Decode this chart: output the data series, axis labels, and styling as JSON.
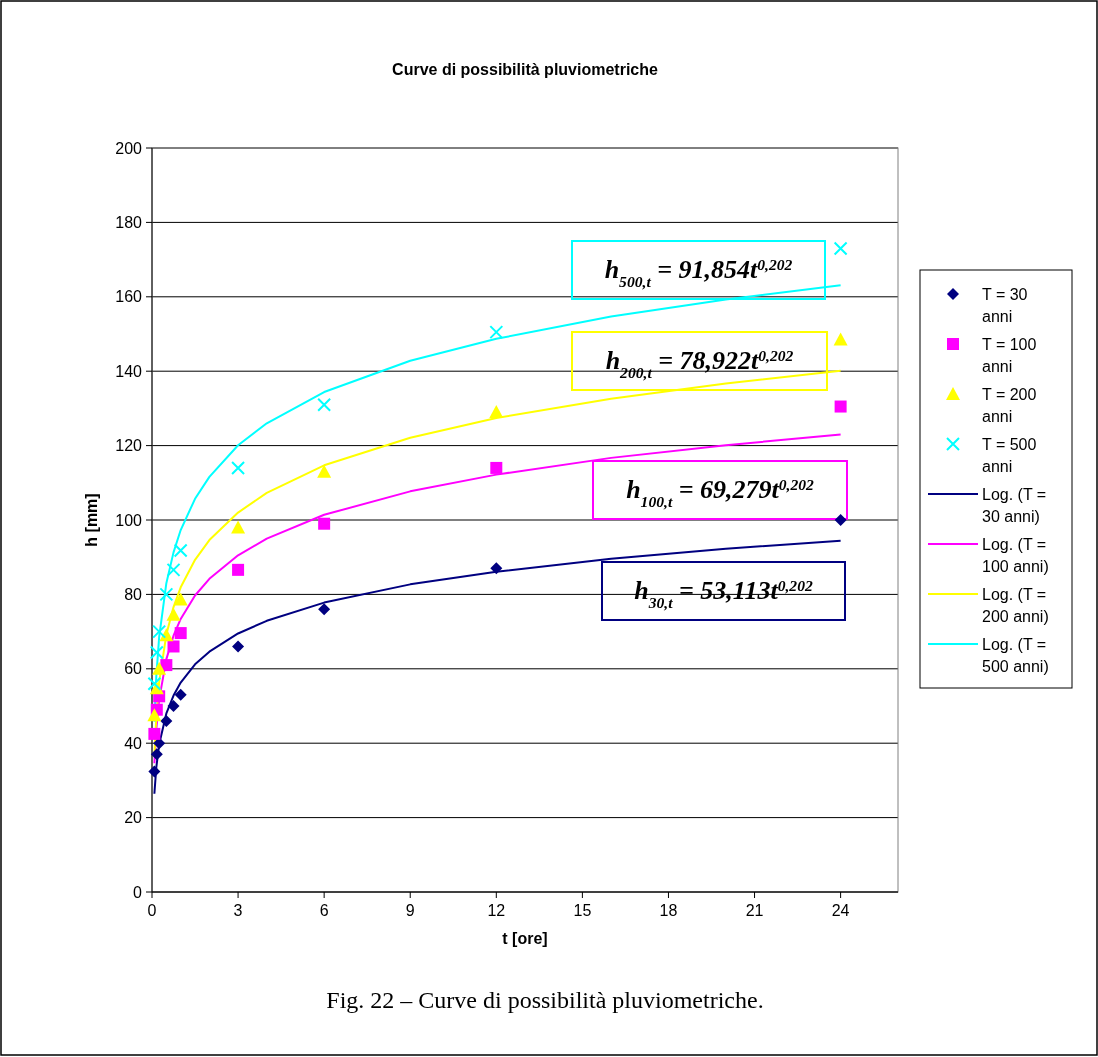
{
  "chart_data": {
    "type": "scatter",
    "title": "Curve di possibilità pluviometriche",
    "xlabel": "t [ore]",
    "ylabel": "h [mm]",
    "xlim": [
      0,
      26
    ],
    "xticks": [
      0,
      3,
      6,
      9,
      12,
      15,
      18,
      21,
      24
    ],
    "ylim": [
      0,
      200
    ],
    "yticks": [
      0,
      20,
      40,
      60,
      80,
      100,
      120,
      140,
      160,
      180,
      200
    ],
    "grid": "y",
    "legend": "right",
    "x": [
      0.083,
      0.167,
      0.25,
      0.5,
      0.75,
      1,
      3,
      6,
      12,
      24
    ],
    "series": [
      {
        "name": "T = 30 anni",
        "marker": "diamond",
        "color": "#000080",
        "values": [
          32.4,
          37,
          40,
          46,
          50,
          53,
          66,
          76,
          87,
          100
        ]
      },
      {
        "name": "T = 100 anni",
        "marker": "square",
        "color": "#ff00ff",
        "values": [
          42.5,
          49,
          52.6,
          61,
          66,
          69.6,
          86.6,
          99,
          114,
          130.5
        ]
      },
      {
        "name": "T = 200 anni",
        "marker": "triangle",
        "color": "#ffff00",
        "values": [
          47.5,
          54.8,
          60,
          69,
          74.5,
          78.6,
          98,
          113,
          129,
          148.5
        ]
      },
      {
        "name": "T = 500 anni",
        "marker": "cross",
        "color": "#00ffff",
        "values": [
          56,
          64.4,
          70,
          80,
          86.6,
          91.8,
          114,
          131,
          150.5,
          173
        ]
      },
      {
        "name": "Log. (T = 30 anni)",
        "type": "line",
        "color": "#000080",
        "x": [
          0.083,
          0.15,
          0.25,
          0.5,
          0.75,
          1,
          1.5,
          2,
          3,
          4,
          6,
          9,
          12,
          16,
          20,
          24
        ],
        "values": [
          26.4,
          33.5,
          39.7,
          48.0,
          52.8,
          56.3,
          61.2,
          64.6,
          69.5,
          72.9,
          77.8,
          82.7,
          86.1,
          89.6,
          92.3,
          94.4
        ]
      },
      {
        "name": "Log. (T = 100 anni)",
        "type": "line",
        "color": "#ff00ff",
        "x": [
          0.083,
          0.15,
          0.25,
          0.5,
          0.75,
          1,
          1.5,
          2,
          3,
          4,
          6,
          9,
          12,
          16,
          20,
          24
        ],
        "values": [
          34.6,
          43.8,
          51.8,
          62.6,
          68.9,
          73.4,
          79.7,
          84.2,
          90.5,
          95.0,
          101.4,
          107.7,
          112.2,
          116.7,
          120.1,
          123.0
        ]
      },
      {
        "name": "Log. (T = 200 anni)",
        "type": "line",
        "color": "#ffff00",
        "x": [
          0.083,
          0.15,
          0.25,
          0.5,
          0.75,
          1,
          1.5,
          2,
          3,
          4,
          6,
          9,
          12,
          16,
          20,
          24
        ],
        "values": [
          36.4,
          47.2,
          56.5,
          69.2,
          76.6,
          81.9,
          89.3,
          94.6,
          102.0,
          107.3,
          114.7,
          122.1,
          127.4,
          132.6,
          136.7,
          140.1
        ]
      },
      {
        "name": "Log. (T = 500 anni)",
        "type": "line",
        "color": "#00ffff",
        "x": [
          0.083,
          0.15,
          0.25,
          0.5,
          0.75,
          1,
          1.5,
          2,
          3,
          4,
          6,
          9,
          12,
          16,
          20,
          24
        ],
        "values": [
          45.8,
          58.0,
          68.6,
          83.0,
          91.3,
          97.3,
          105.7,
          111.6,
          120.1,
          126.0,
          134.4,
          142.8,
          148.7,
          154.7,
          159.3,
          163.1
        ]
      }
    ],
    "annotations": [
      "h$_{30,t}$ = 53,113t$^{0,202}$",
      "h$_{100,t}$ = 69,279t$^{0,202}$",
      "h$_{200,t}$ = 78,922t$^{0,202}$",
      "h$_{500,t}$ = 91,854t$^{0,202}$",
      "Fig. 22 – Curve di possibilità pluviometriche."
    ]
  }
}
